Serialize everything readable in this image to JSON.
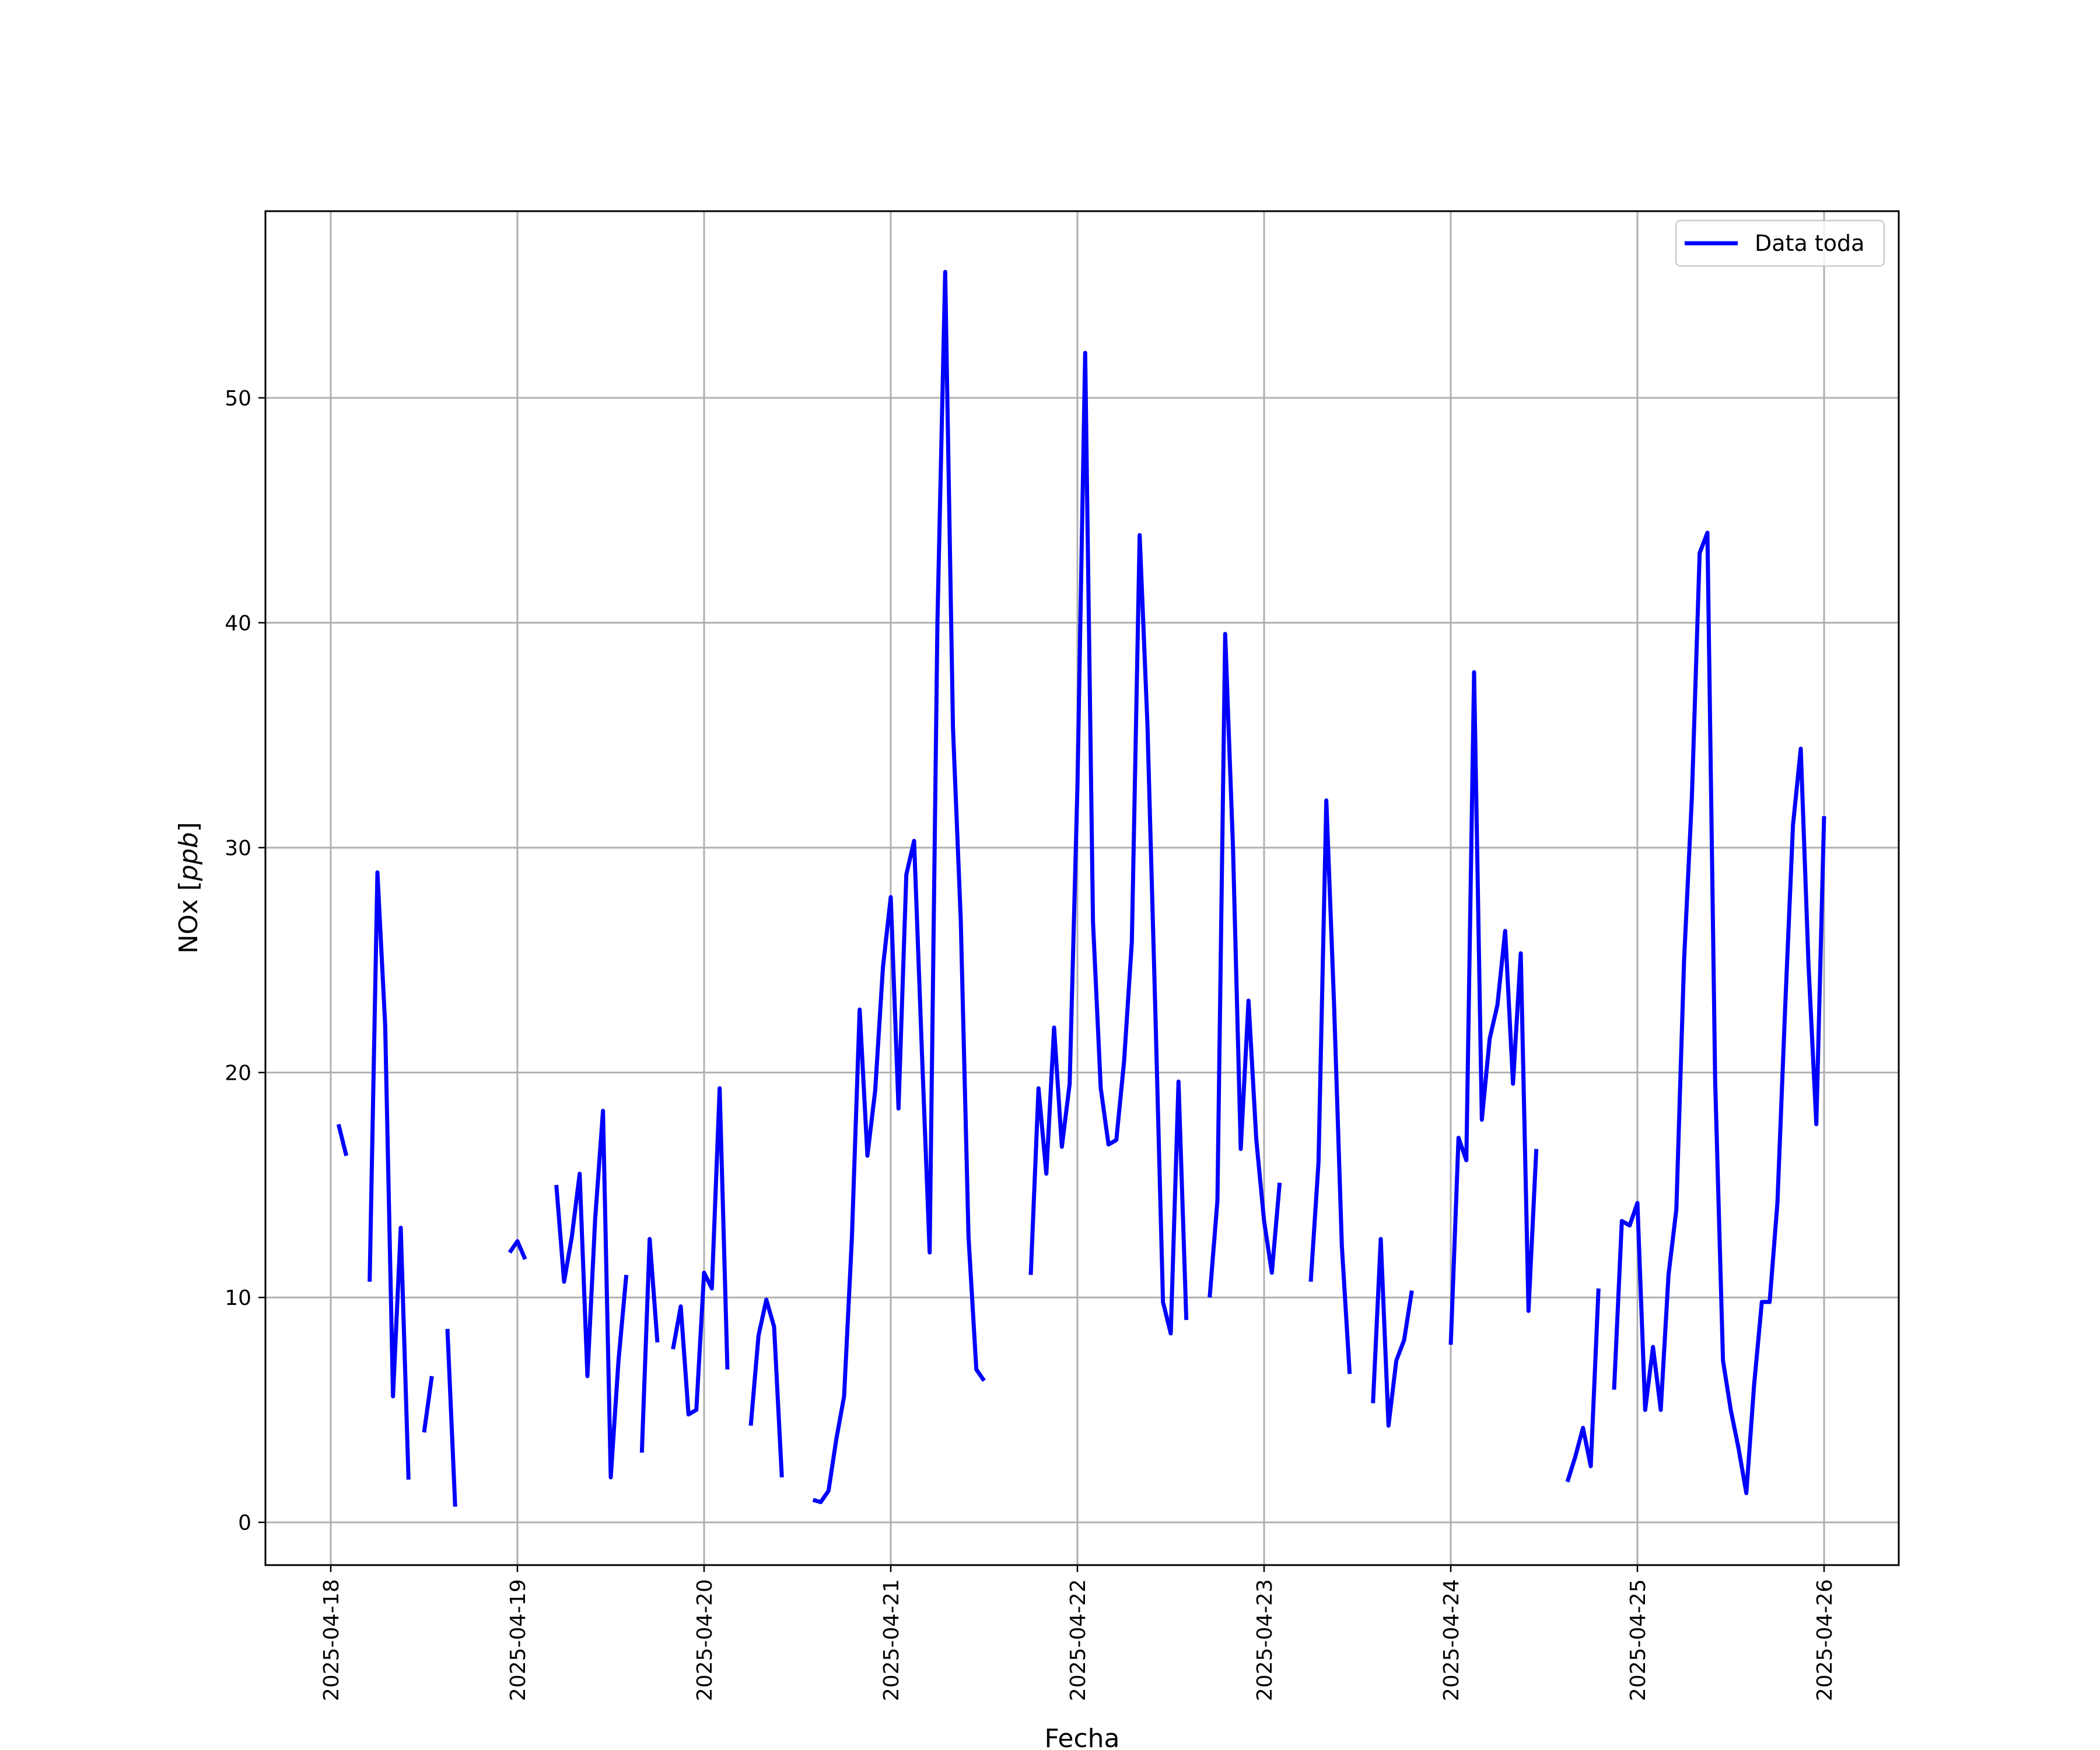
{
  "chart_data": {
    "type": "line",
    "xlabel": "Fecha",
    "ylabel_plain": "NOx [",
    "ylabel_italic": "ppb",
    "ylabel_close": "]",
    "x_ticks": [
      "2025-04-18",
      "2025-04-19",
      "2025-04-20",
      "2025-04-21",
      "2025-04-22",
      "2025-04-23",
      "2025-04-24",
      "2025-04-25",
      "2025-04-26"
    ],
    "y_ticks": [
      0,
      10,
      20,
      30,
      40,
      50
    ],
    "xlim": [
      "2025-04-17T15:36",
      "2025-04-26T09:36"
    ],
    "ylim": [
      -1.9,
      58.3
    ],
    "grid": true,
    "legend_position": "top-right",
    "colors": {
      "series": "#0000ff",
      "grid": "#b0b0b0"
    },
    "series": [
      {
        "name": "Data toda",
        "segments": [
          [
            [
              "2025-04-18T01:00",
              17.7
            ],
            [
              "2025-04-18T02:00",
              16.3
            ]
          ],
          [
            [
              "2025-04-18T05:00",
              10.7
            ],
            [
              "2025-04-18T06:00",
              28.9
            ],
            [
              "2025-04-18T07:00",
              22.1
            ],
            [
              "2025-04-18T08:00",
              5.6
            ],
            [
              "2025-04-18T09:00",
              13.1
            ],
            [
              "2025-04-18T10:00",
              1.9
            ]
          ],
          [
            [
              "2025-04-18T12:00",
              4.0
            ],
            [
              "2025-04-18T13:00",
              6.5
            ]
          ],
          [
            [
              "2025-04-18T15:00",
              8.6
            ],
            [
              "2025-04-18T16:00",
              0.7
            ]
          ],
          [
            [
              "2025-04-18T23:00",
              12.0
            ],
            [
              "2025-04-19T00:00",
              12.5
            ],
            [
              "2025-04-19T01:00",
              11.7
            ]
          ],
          [
            [
              "2025-04-19T05:00",
              15.0
            ],
            [
              "2025-04-19T06:00",
              10.7
            ],
            [
              "2025-04-19T07:00",
              12.7
            ],
            [
              "2025-04-19T08:00",
              15.5
            ],
            [
              "2025-04-19T09:00",
              6.5
            ],
            [
              "2025-04-19T10:00",
              13.5
            ],
            [
              "2025-04-19T11:00",
              18.3
            ],
            [
              "2025-04-19T12:00",
              2.0
            ],
            [
              "2025-04-19T13:00",
              7.2
            ],
            [
              "2025-04-19T14:00",
              11.0
            ]
          ],
          [
            [
              "2025-04-19T16:00",
              3.1
            ],
            [
              "2025-04-19T17:00",
              12.6
            ],
            [
              "2025-04-19T18:00",
              8.0
            ]
          ],
          [
            [
              "2025-04-19T20:00",
              7.7
            ],
            [
              "2025-04-19T21:00",
              9.6
            ],
            [
              "2025-04-19T22:00",
              4.8
            ],
            [
              "2025-04-19T23:00",
              5.0
            ],
            [
              "2025-04-20T00:00",
              11.1
            ],
            [
              "2025-04-20T01:00",
              10.4
            ],
            [
              "2025-04-20T02:00",
              19.3
            ],
            [
              "2025-04-20T03:00",
              6.8
            ]
          ],
          [
            [
              "2025-04-20T06:00",
              4.3
            ],
            [
              "2025-04-20T07:00",
              8.3
            ],
            [
              "2025-04-20T08:00",
              9.9
            ],
            [
              "2025-04-20T09:00",
              8.7
            ],
            [
              "2025-04-20T10:00",
              2.0
            ]
          ],
          [
            [
              "2025-04-20T14:00",
              1.0
            ],
            [
              "2025-04-20T15:00",
              0.9
            ],
            [
              "2025-04-20T16:00",
              1.4
            ],
            [
              "2025-04-20T17:00",
              3.7
            ],
            [
              "2025-04-20T18:00",
              5.6
            ],
            [
              "2025-04-20T19:00",
              12.6
            ],
            [
              "2025-04-20T20:00",
              22.8
            ],
            [
              "2025-04-20T21:00",
              16.3
            ],
            [
              "2025-04-20T22:00",
              19.2
            ],
            [
              "2025-04-20T23:00",
              24.7
            ],
            [
              "2025-04-21T00:00",
              27.8
            ],
            [
              "2025-04-21T01:00",
              18.4
            ],
            [
              "2025-04-21T02:00",
              28.8
            ],
            [
              "2025-04-21T03:00",
              30.3
            ],
            [
              "2025-04-21T04:00",
              21.0
            ],
            [
              "2025-04-21T05:00",
              12.0
            ],
            [
              "2025-04-21T06:00",
              40.0
            ],
            [
              "2025-04-21T07:00",
              55.6
            ],
            [
              "2025-04-21T08:00",
              35.3
            ],
            [
              "2025-04-21T09:00",
              26.8
            ],
            [
              "2025-04-21T10:00",
              12.7
            ],
            [
              "2025-04-21T11:00",
              6.8
            ],
            [
              "2025-04-21T12:00",
              6.3
            ]
          ],
          [
            [
              "2025-04-21T18:00",
              11.0
            ],
            [
              "2025-04-21T19:00",
              19.3
            ],
            [
              "2025-04-21T20:00",
              15.5
            ],
            [
              "2025-04-21T21:00",
              22.0
            ],
            [
              "2025-04-21T22:00",
              16.7
            ],
            [
              "2025-04-21T23:00",
              19.5
            ],
            [
              "2025-04-22T00:00",
              32.7
            ],
            [
              "2025-04-22T01:00",
              52.0
            ],
            [
              "2025-04-22T02:00",
              26.7
            ],
            [
              "2025-04-22T03:00",
              19.3
            ],
            [
              "2025-04-22T04:00",
              16.8
            ],
            [
              "2025-04-22T05:00",
              17.0
            ],
            [
              "2025-04-22T06:00",
              20.5
            ],
            [
              "2025-04-22T07:00",
              25.8
            ],
            [
              "2025-04-22T08:00",
              43.9
            ],
            [
              "2025-04-22T09:00",
              35.5
            ],
            [
              "2025-04-22T10:00",
              23.0
            ],
            [
              "2025-04-22T11:00",
              9.8
            ],
            [
              "2025-04-22T12:00",
              8.4
            ],
            [
              "2025-04-22T13:00",
              19.6
            ],
            [
              "2025-04-22T14:00",
              9.0
            ]
          ],
          [
            [
              "2025-04-22T17:00",
              10.0
            ],
            [
              "2025-04-22T18:00",
              14.3
            ],
            [
              "2025-04-22T19:00",
              39.5
            ],
            [
              "2025-04-22T20:00",
              30.0
            ],
            [
              "2025-04-22T21:00",
              16.6
            ],
            [
              "2025-04-22T22:00",
              23.2
            ],
            [
              "2025-04-22T23:00",
              17.0
            ],
            [
              "2025-04-23T00:00",
              13.4
            ],
            [
              "2025-04-23T01:00",
              11.1
            ],
            [
              "2025-04-23T02:00",
              15.1
            ]
          ],
          [
            [
              "2025-04-23T06:00",
              10.7
            ],
            [
              "2025-04-23T07:00",
              16.0
            ],
            [
              "2025-04-23T08:00",
              32.1
            ],
            [
              "2025-04-23T09:00",
              23.0
            ],
            [
              "2025-04-23T10:00",
              12.3
            ],
            [
              "2025-04-23T11:00",
              6.6
            ]
          ],
          [
            [
              "2025-04-23T14:00",
              5.3
            ],
            [
              "2025-04-23T15:00",
              12.6
            ],
            [
              "2025-04-23T16:00",
              4.3
            ],
            [
              "2025-04-23T17:00",
              7.2
            ],
            [
              "2025-04-23T18:00",
              8.1
            ],
            [
              "2025-04-23T19:00",
              10.3
            ]
          ],
          [
            [
              "2025-04-24T00:00",
              7.9
            ],
            [
              "2025-04-24T01:00",
              17.1
            ],
            [
              "2025-04-24T02:00",
              16.1
            ],
            [
              "2025-04-24T03:00",
              37.8
            ],
            [
              "2025-04-24T04:00",
              17.9
            ],
            [
              "2025-04-24T05:00",
              21.5
            ],
            [
              "2025-04-24T06:00",
              23.0
            ],
            [
              "2025-04-24T07:00",
              26.3
            ],
            [
              "2025-04-24T08:00",
              19.5
            ],
            [
              "2025-04-24T09:00",
              25.3
            ],
            [
              "2025-04-24T10:00",
              9.4
            ],
            [
              "2025-04-24T11:00",
              16.6
            ]
          ],
          [
            [
              "2025-04-24T15:00",
              1.8
            ],
            [
              "2025-04-24T16:00",
              2.9
            ],
            [
              "2025-04-24T17:00",
              4.2
            ],
            [
              "2025-04-24T18:00",
              2.5
            ],
            [
              "2025-04-24T19:00",
              10.4
            ]
          ],
          [
            [
              "2025-04-24T21:00",
              5.9
            ],
            [
              "2025-04-24T22:00",
              13.4
            ],
            [
              "2025-04-24T23:00",
              13.2
            ],
            [
              "2025-04-25T00:00",
              14.2
            ],
            [
              "2025-04-25T01:00",
              5.0
            ],
            [
              "2025-04-25T02:00",
              7.8
            ],
            [
              "2025-04-25T03:00",
              5.0
            ],
            [
              "2025-04-25T04:00",
              11.0
            ],
            [
              "2025-04-25T05:00",
              13.9
            ],
            [
              "2025-04-25T06:00",
              25.0
            ],
            [
              "2025-04-25T07:00",
              32.2
            ],
            [
              "2025-04-25T08:00",
              43.1
            ],
            [
              "2025-04-25T09:00",
              44.0
            ],
            [
              "2025-04-25T10:00",
              19.6
            ],
            [
              "2025-04-25T11:00",
              7.2
            ],
            [
              "2025-04-25T12:00",
              5.0
            ],
            [
              "2025-04-25T13:00",
              3.3
            ],
            [
              "2025-04-25T14:00",
              1.3
            ],
            [
              "2025-04-25T15:00",
              6.1
            ],
            [
              "2025-04-25T16:00",
              9.8
            ],
            [
              "2025-04-25T17:00",
              9.8
            ],
            [
              "2025-04-25T18:00",
              14.2
            ],
            [
              "2025-04-25T19:00",
              22.9
            ],
            [
              "2025-04-25T20:00",
              31.0
            ],
            [
              "2025-04-25T21:00",
              34.4
            ],
            [
              "2025-04-25T22:00",
              24.8
            ],
            [
              "2025-04-25T23:00",
              17.7
            ],
            [
              "2025-04-26T00:00",
              31.4
            ]
          ]
        ]
      }
    ]
  }
}
